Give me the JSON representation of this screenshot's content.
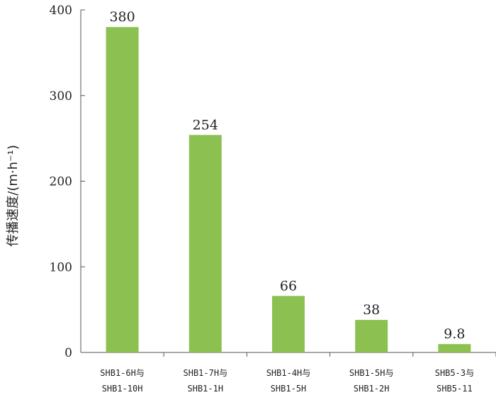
{
  "chart_data": {
    "type": "bar",
    "title": "",
    "xlabel": "",
    "ylabel": "传播速度/(m·h⁻¹)",
    "categories": [
      [
        "SHB1-6H与",
        "SHB1-10H"
      ],
      [
        "SHB1-7H与",
        "SHB1-1H"
      ],
      [
        "SHB1-4H与",
        "SHB1-5H"
      ],
      [
        "SHB1-5H与",
        "SHB1-2H"
      ],
      [
        "SHB5-3与",
        "SHB5-11"
      ]
    ],
    "values": [
      380,
      254,
      66,
      38,
      9.8
    ],
    "value_labels": [
      "380",
      "254",
      "66",
      "38",
      "9.8"
    ],
    "ylim": [
      0,
      400
    ],
    "yticks": [
      0,
      100,
      200,
      300,
      400
    ],
    "grid": false,
    "legend": "none",
    "bar_color": "#8cc152",
    "axis_color": "#555555"
  }
}
